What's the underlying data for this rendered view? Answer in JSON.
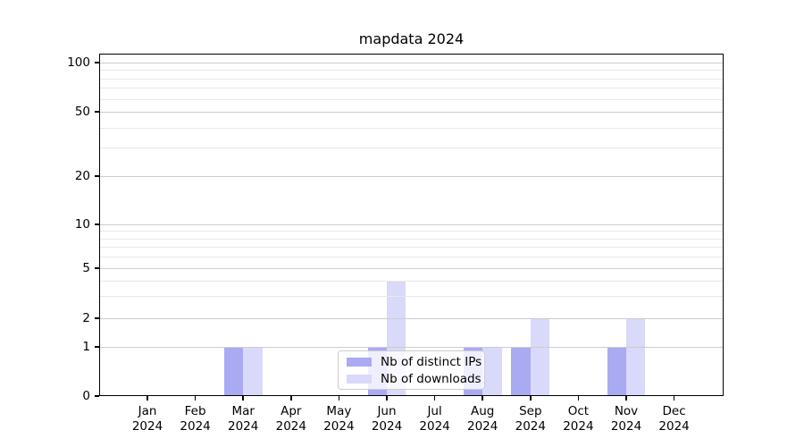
{
  "chart_data": {
    "type": "bar",
    "title": "mapdata 2024",
    "categories": [
      {
        "month": "Jan",
        "year": "2024"
      },
      {
        "month": "Feb",
        "year": "2024"
      },
      {
        "month": "Mar",
        "year": "2024"
      },
      {
        "month": "Apr",
        "year": "2024"
      },
      {
        "month": "May",
        "year": "2024"
      },
      {
        "month": "Jun",
        "year": "2024"
      },
      {
        "month": "Jul",
        "year": "2024"
      },
      {
        "month": "Aug",
        "year": "2024"
      },
      {
        "month": "Sep",
        "year": "2024"
      },
      {
        "month": "Oct",
        "year": "2024"
      },
      {
        "month": "Nov",
        "year": "2024"
      },
      {
        "month": "Dec",
        "year": "2024"
      }
    ],
    "series": [
      {
        "name": "Nb of distinct IPs",
        "color": "#aaaaf2",
        "values": [
          0,
          0,
          1,
          0,
          0,
          1,
          0,
          1,
          1,
          0,
          1,
          0
        ]
      },
      {
        "name": "Nb of downloads",
        "color": "#d9d9fa",
        "values": [
          0,
          0,
          1,
          0,
          0,
          4,
          0,
          1,
          2,
          0,
          2,
          0
        ]
      }
    ],
    "y_axis": {
      "scale": "symlog",
      "major_ticks": [
        0,
        1,
        2,
        5,
        10,
        20,
        50,
        100
      ],
      "minor_ticks": [
        3,
        4,
        6,
        7,
        8,
        9,
        30,
        40,
        60,
        70,
        80,
        90
      ],
      "range": [
        0,
        115
      ]
    },
    "legend": {
      "position": "lower center"
    },
    "grid": true
  }
}
